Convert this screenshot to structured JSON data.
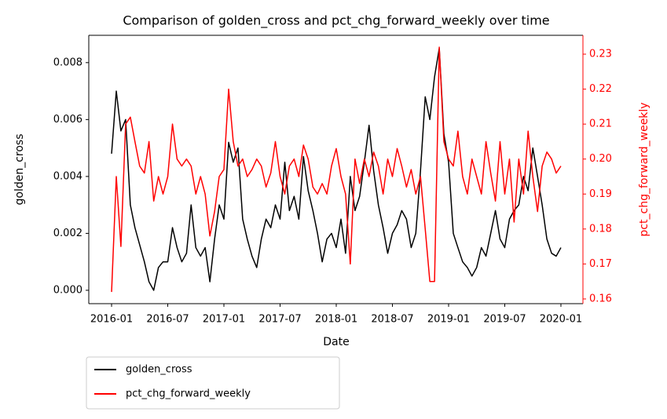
{
  "chart_data": {
    "type": "line",
    "title": "Comparison of golden_cross and pct_chg_forward_weekly over time",
    "xlabel": "Date",
    "ylabel": "golden_cross",
    "y2label": "pct_chg_forward_weekly",
    "x": [
      2016.0,
      2016.042,
      2016.083,
      2016.125,
      2016.167,
      2016.208,
      2016.25,
      2016.292,
      2016.333,
      2016.375,
      2016.417,
      2016.458,
      2016.5,
      2016.542,
      2016.583,
      2016.625,
      2016.667,
      2016.708,
      2016.75,
      2016.792,
      2016.833,
      2016.875,
      2016.917,
      2016.958,
      2017.0,
      2017.042,
      2017.083,
      2017.125,
      2017.167,
      2017.208,
      2017.25,
      2017.292,
      2017.333,
      2017.375,
      2017.417,
      2017.458,
      2017.5,
      2017.542,
      2017.583,
      2017.625,
      2017.667,
      2017.708,
      2017.75,
      2017.792,
      2017.833,
      2017.875,
      2017.917,
      2017.958,
      2018.0,
      2018.042,
      2018.083,
      2018.125,
      2018.167,
      2018.208,
      2018.25,
      2018.292,
      2018.333,
      2018.375,
      2018.417,
      2018.458,
      2018.5,
      2018.542,
      2018.583,
      2018.625,
      2018.667,
      2018.708,
      2018.75,
      2018.792,
      2018.833,
      2018.875,
      2018.917,
      2018.958,
      2019.0,
      2019.042,
      2019.083,
      2019.125,
      2019.167,
      2019.208,
      2019.25,
      2019.292,
      2019.333,
      2019.375,
      2019.417,
      2019.458,
      2019.5,
      2019.542,
      2019.583,
      2019.625,
      2019.667,
      2019.708,
      2019.75,
      2019.792,
      2019.833,
      2019.875,
      2019.917,
      2019.958,
      2020.0
    ],
    "series": [
      {
        "name": "golden_cross",
        "color": "#000000",
        "axis": "y",
        "values": [
          0.0048,
          0.007,
          0.0056,
          0.006,
          0.003,
          0.0022,
          0.0016,
          0.001,
          0.0003,
          0.0,
          0.0008,
          0.001,
          0.001,
          0.0022,
          0.0015,
          0.001,
          0.0013,
          0.003,
          0.0015,
          0.0012,
          0.0015,
          0.0003,
          0.0018,
          0.003,
          0.0025,
          0.0052,
          0.0045,
          0.005,
          0.0025,
          0.0018,
          0.0012,
          0.0008,
          0.0018,
          0.0025,
          0.0022,
          0.003,
          0.0025,
          0.0045,
          0.0028,
          0.0033,
          0.0025,
          0.0047,
          0.0035,
          0.0028,
          0.002,
          0.001,
          0.0018,
          0.002,
          0.0015,
          0.0025,
          0.0013,
          0.004,
          0.0028,
          0.0033,
          0.0045,
          0.0058,
          0.0042,
          0.003,
          0.0022,
          0.0013,
          0.002,
          0.0023,
          0.0028,
          0.0025,
          0.0015,
          0.002,
          0.0042,
          0.0068,
          0.006,
          0.0075,
          0.0085,
          0.0055,
          0.0045,
          0.002,
          0.0015,
          0.001,
          0.0008,
          0.0005,
          0.0008,
          0.0015,
          0.0012,
          0.002,
          0.0028,
          0.0018,
          0.0015,
          0.0025,
          0.0028,
          0.003,
          0.004,
          0.0035,
          0.005,
          0.004,
          0.003,
          0.0018,
          0.0013,
          0.0012,
          0.0015
        ]
      },
      {
        "name": "pct_chg_forward_weekly",
        "color": "#ff0000",
        "axis": "y2",
        "values": [
          0.162,
          0.195,
          0.175,
          0.21,
          0.212,
          0.205,
          0.198,
          0.196,
          0.205,
          0.188,
          0.195,
          0.19,
          0.195,
          0.21,
          0.2,
          0.198,
          0.2,
          0.198,
          0.19,
          0.195,
          0.19,
          0.178,
          0.185,
          0.195,
          0.197,
          0.22,
          0.205,
          0.198,
          0.2,
          0.195,
          0.197,
          0.2,
          0.198,
          0.192,
          0.196,
          0.205,
          0.195,
          0.19,
          0.198,
          0.2,
          0.195,
          0.204,
          0.2,
          0.192,
          0.19,
          0.193,
          0.19,
          0.198,
          0.203,
          0.195,
          0.19,
          0.17,
          0.2,
          0.193,
          0.2,
          0.195,
          0.202,
          0.198,
          0.19,
          0.2,
          0.195,
          0.203,
          0.198,
          0.192,
          0.197,
          0.19,
          0.195,
          0.18,
          0.165,
          0.165,
          0.232,
          0.205,
          0.2,
          0.198,
          0.208,
          0.195,
          0.19,
          0.2,
          0.195,
          0.19,
          0.205,
          0.196,
          0.188,
          0.205,
          0.19,
          0.2,
          0.182,
          0.2,
          0.19,
          0.208,
          0.195,
          0.185,
          0.198,
          0.202,
          0.2,
          0.196,
          0.198
        ]
      }
    ],
    "xlim": [
      2015.797,
      2020.196
    ],
    "xticks": [
      {
        "value": 2016,
        "label": "2016-01"
      },
      {
        "value": 2016.5,
        "label": "2016-07"
      },
      {
        "value": 2017,
        "label": "2017-01"
      },
      {
        "value": 2017.5,
        "label": "2017-07"
      },
      {
        "value": 2018,
        "label": "2018-01"
      },
      {
        "value": 2018.5,
        "label": "2018-07"
      },
      {
        "value": 2019,
        "label": "2019-01"
      },
      {
        "value": 2019.5,
        "label": "2019-07"
      },
      {
        "value": 2020,
        "label": "2020-01"
      }
    ],
    "ylim": [
      -0.00047,
      0.00896
    ],
    "yticks": [
      {
        "value": 0,
        "label": "0.000"
      },
      0.002,
      0.004,
      0.006,
      0.008
    ],
    "y2lim": [
      0.15865,
      0.23539
    ],
    "y2ticks": [
      0.16,
      0.17,
      0.18,
      0.19,
      {
        "value": 0.2,
        "label": "0.20"
      },
      0.21,
      0.22,
      0.23
    ],
    "grid": false,
    "legend": "below"
  }
}
